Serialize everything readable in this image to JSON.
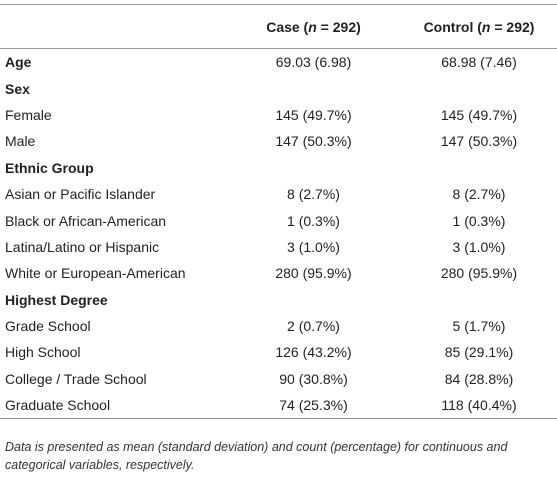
{
  "table": {
    "header": [
      {
        "pre": "Case (",
        "var": "n",
        "post": " = 292)"
      },
      {
        "pre": "Control (",
        "var": "n",
        "post": " = 292)"
      }
    ],
    "rows": [
      {
        "label": "Age",
        "bold": true,
        "cells": [
          "69.03 (6.98)",
          "68.98 (7.46)"
        ]
      },
      {
        "label": "Sex",
        "bold": true,
        "cells": []
      },
      {
        "label": "Female",
        "cells": [
          "145 (49.7%)",
          "145 (49.7%)"
        ]
      },
      {
        "label": "Male",
        "cells": [
          "147 (50.3%)",
          "147 (50.3%)"
        ]
      },
      {
        "label": "Ethnic Group",
        "bold": true,
        "cells": []
      },
      {
        "label": "Asian or Pacific Islander",
        "cells": [
          "8 (2.7%)",
          "8 (2.7%)"
        ]
      },
      {
        "label": "Black or African-American",
        "cells": [
          "1 (0.3%)",
          "1 (0.3%)"
        ]
      },
      {
        "label": "Latina/Latino or Hispanic",
        "cells": [
          "3 (1.0%)",
          "3 (1.0%)"
        ]
      },
      {
        "label": "White or European-American",
        "cells": [
          "280 (95.9%)",
          "280 (95.9%)"
        ]
      },
      {
        "label": "Highest Degree",
        "bold": true,
        "cells": []
      },
      {
        "label": "Grade School",
        "cells": [
          "2 (0.7%)",
          "5 (1.7%)"
        ]
      },
      {
        "label": "High School",
        "cells": [
          "126 (43.2%)",
          "85 (29.1%)"
        ]
      },
      {
        "label": "College / Trade School",
        "cells": [
          "90 (30.8%)",
          "84 (28.8%)"
        ]
      },
      {
        "label": "Graduate School",
        "cells": [
          "74 (25.3%)",
          "118 (40.4%)"
        ]
      }
    ],
    "footnote": "Data is presented as mean (standard deviation) and count (percentage) for continuous and categorical variables, respectively."
  }
}
